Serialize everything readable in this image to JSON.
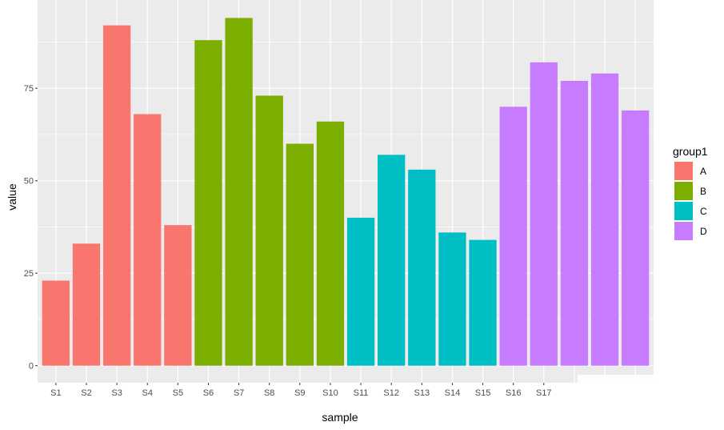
{
  "chart_data": {
    "type": "bar",
    "title": "",
    "xlabel": "sample",
    "ylabel": "value",
    "categories": [
      "S1",
      "S2",
      "S3",
      "S4",
      "S5",
      "S6",
      "S7",
      "S8",
      "S9",
      "S10",
      "S11",
      "S12",
      "S13",
      "S14",
      "S15",
      "S16",
      "S17",
      "",
      "",
      ""
    ],
    "values": [
      23,
      33,
      92,
      68,
      38,
      88,
      94,
      73,
      60,
      66,
      40,
      57,
      53,
      36,
      34,
      70,
      82,
      77,
      79,
      69
    ],
    "groups": [
      "A",
      "A",
      "A",
      "A",
      "A",
      "B",
      "B",
      "B",
      "B",
      "B",
      "C",
      "C",
      "C",
      "C",
      "C",
      "D",
      "D",
      "D",
      "D",
      "D"
    ],
    "ylim": [
      0,
      98
    ],
    "yticks": [
      0,
      25,
      50,
      75
    ],
    "grid": true,
    "legend": {
      "title": "group1",
      "placement": "right",
      "entries": [
        {
          "label": "A",
          "color": "#F8766D"
        },
        {
          "label": "B",
          "color": "#7CAE00"
        },
        {
          "label": "C",
          "color": "#00BFC4"
        },
        {
          "label": "D",
          "color": "#C77CFF"
        }
      ]
    },
    "panel_background": "#EBEBEB",
    "grid_color": "#FFFFFF"
  }
}
